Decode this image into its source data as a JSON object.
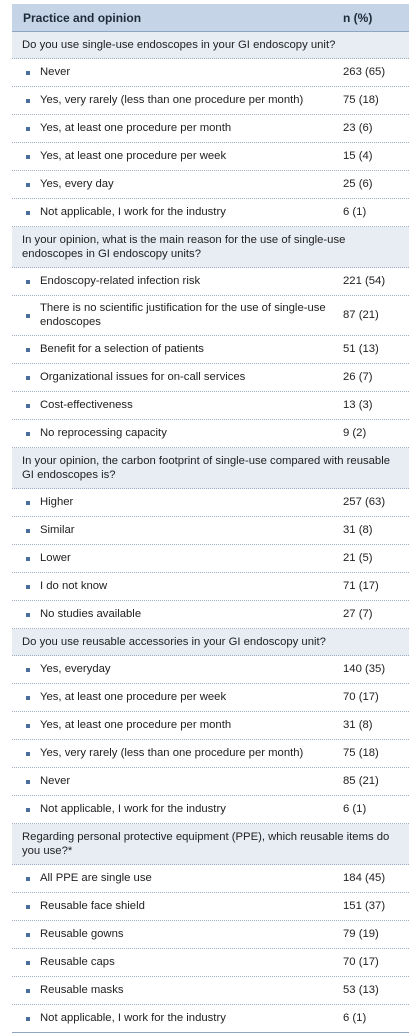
{
  "header": {
    "left": "Practice and opinion",
    "right": "n (%)"
  },
  "sections": [
    {
      "question": "Do you use single-use endoscopes in your GI endoscopy unit?",
      "items": [
        {
          "label": "Never",
          "value": "263 (65)"
        },
        {
          "label": "Yes, very rarely (less than one procedure per month)",
          "value": "75 (18)"
        },
        {
          "label": "Yes, at least one procedure per month",
          "value": "23 (6)"
        },
        {
          "label": "Yes, at least one procedure per week",
          "value": "15 (4)"
        },
        {
          "label": "Yes, every day",
          "value": "25 (6)"
        },
        {
          "label": "Not applicable, I work for the industry",
          "value": "6 (1)"
        }
      ]
    },
    {
      "question": "In your opinion, what is the main reason for the use of single-use endoscopes in GI endoscopy units?",
      "items": [
        {
          "label": "Endoscopy-related infection risk",
          "value": "221 (54)"
        },
        {
          "label": "There is no scientific justification for the use of single-use endoscopes",
          "value": "87 (21)"
        },
        {
          "label": "Benefit for a selection of patients",
          "value": "51 (13)"
        },
        {
          "label": "Organizational issues for on-call services",
          "value": "26 (7)"
        },
        {
          "label": "Cost-effectiveness",
          "value": "13 (3)"
        },
        {
          "label": "No reprocessing capacity",
          "value": "9 (2)"
        }
      ]
    },
    {
      "question": "In your opinion, the carbon footprint of single-use compared with reusable GI endoscopes is?",
      "items": [
        {
          "label": "Higher",
          "value": "257 (63)"
        },
        {
          "label": "Similar",
          "value": "31 (8)"
        },
        {
          "label": "Lower",
          "value": "21 (5)"
        },
        {
          "label": "I do not know",
          "value": "71 (17)"
        },
        {
          "label": "No studies available",
          "value": "27 (7)"
        }
      ]
    },
    {
      "question": "Do you use reusable accessories in your GI endoscopy unit?",
      "items": [
        {
          "label": "Yes, everyday",
          "value": "140 (35)"
        },
        {
          "label": "Yes, at least one procedure per week",
          "value": "70 (17)"
        },
        {
          "label": "Yes, at least one procedure per month",
          "value": "31 (8)"
        },
        {
          "label": "Yes, very rarely (less than one procedure per month)",
          "value": "75 (18)"
        },
        {
          "label": "Never",
          "value": "85 (21)"
        },
        {
          "label": "Not applicable, I work for the industry",
          "value": "6 (1)"
        }
      ]
    },
    {
      "question": "Regarding personal protective equipment (PPE), which reusable items do you use?*",
      "items": [
        {
          "label": "All PPE are single use",
          "value": "184 (45)"
        },
        {
          "label": "Reusable face shield",
          "value": "151 (37)"
        },
        {
          "label": "Reusable gowns",
          "value": "79 (19)"
        },
        {
          "label": "Reusable caps",
          "value": "70 (17)"
        },
        {
          "label": "Reusable masks",
          "value": "53 (13)"
        },
        {
          "label": "Not applicable, I work for the industry",
          "value": "6 (1)"
        }
      ]
    }
  ]
}
